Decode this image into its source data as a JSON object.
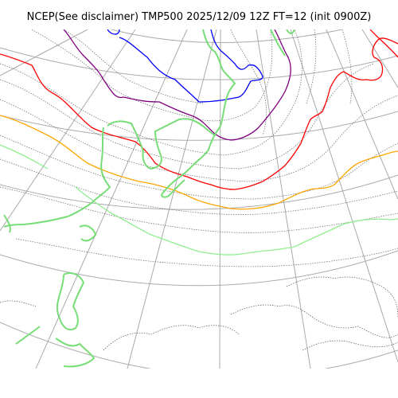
{
  "title": "NCEP(See disclaimer) TMP500 2025/12/09 12Z FT=12 (init 0900Z)",
  "map": {
    "variable": "TMP500",
    "colors": {
      "graticule": "#aaaaaa",
      "coastline": "#555555",
      "isotherm_minor": "#666666",
      "contour_blue": "#0000ff",
      "contour_purple": "#800080",
      "contour_red": "#ff0000",
      "contour_orange": "#ffa500",
      "contour_lightgreen": "#90ee90",
      "land_outline": "#77dd77"
    }
  }
}
